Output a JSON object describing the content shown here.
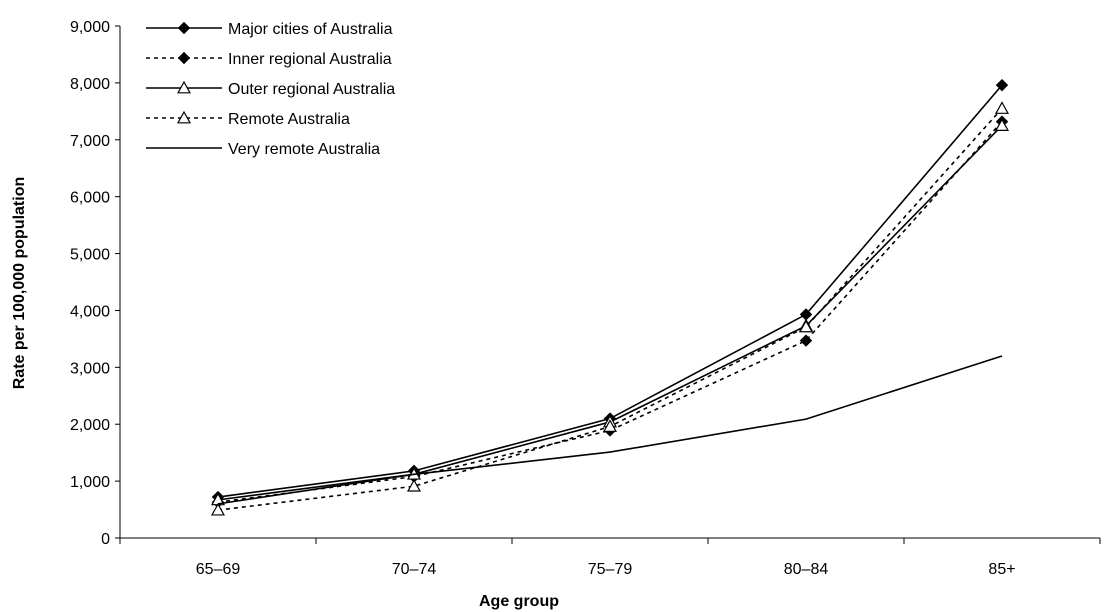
{
  "chart_data": {
    "type": "line",
    "title": "",
    "xlabel": "Age group",
    "ylabel": "Rate per 100,000 population",
    "categories": [
      "65–69",
      "70–74",
      "75–79",
      "80–84",
      "85+"
    ],
    "ylim": [
      0,
      9000
    ],
    "yticks": [
      "0",
      "1,000",
      "2,000",
      "3,000",
      "4,000",
      "5,000",
      "6,000",
      "7,000",
      "8,000",
      "9,000"
    ],
    "legend_position": "top-left",
    "series": [
      {
        "name": "Major cities  of Australia",
        "values": [
          720,
          1180,
          2100,
          3930,
          7960
        ],
        "line": "solid",
        "marker": "diamond"
      },
      {
        "name": "Inner regional Australia",
        "values": [
          630,
          1080,
          1890,
          3470,
          7320
        ],
        "line": "dashed",
        "marker": "diamond"
      },
      {
        "name": "Outer regional Australia",
        "values": [
          670,
          1120,
          2040,
          3730,
          7250
        ],
        "line": "solid",
        "marker": "triangle"
      },
      {
        "name": "Remote Australia",
        "values": [
          490,
          910,
          1960,
          3710,
          7550
        ],
        "line": "dashed",
        "marker": "triangle"
      },
      {
        "name": "Very remote Australia",
        "values": [
          600,
          1120,
          1510,
          2090,
          3200
        ],
        "line": "solid",
        "marker": "none"
      }
    ]
  }
}
